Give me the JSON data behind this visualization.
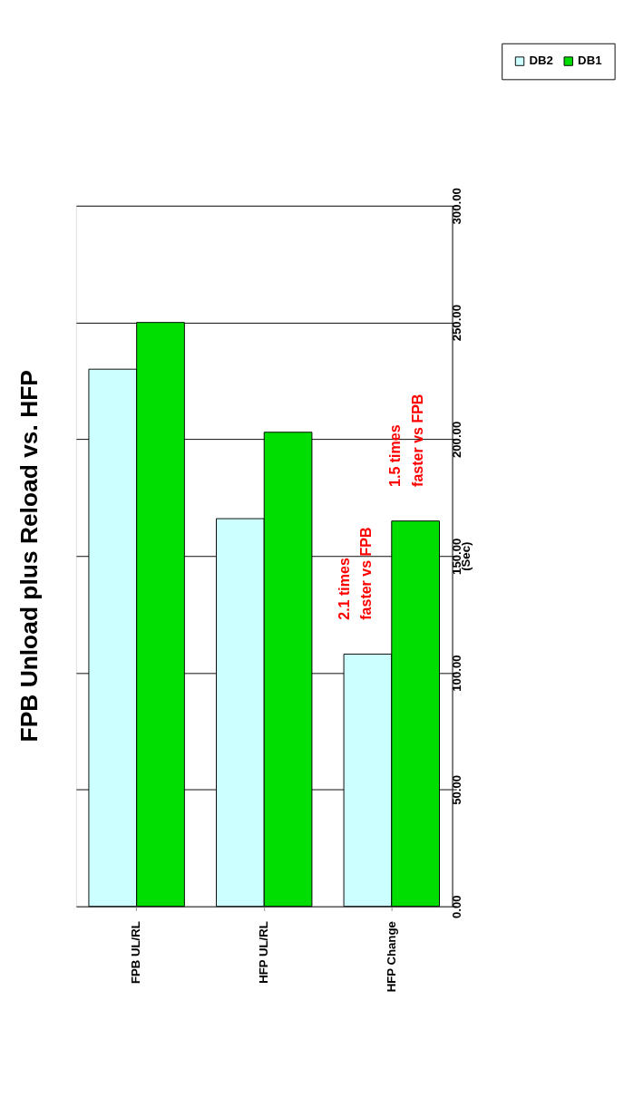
{
  "chart_data": {
    "type": "bar",
    "title": "FPB Unload plus Reload vs. HFP",
    "ylabel": "(Sec)",
    "categories": [
      "FPB UL/RL",
      "HFP UL/RL",
      "HFP Change"
    ],
    "series": [
      {
        "name": "DB2",
        "color": "#ccffff",
        "values": [
          230,
          166,
          108
        ]
      },
      {
        "name": "DB1",
        "color": "#00dd00",
        "values": [
          250,
          203,
          165
        ]
      }
    ],
    "ylim": [
      0,
      300
    ],
    "yticks": [
      {
        "value": 0,
        "label": "0.00"
      },
      {
        "value": 50,
        "label": "50.00"
      },
      {
        "value": 100,
        "label": "100.00"
      },
      {
        "value": 150,
        "label": "150.00"
      },
      {
        "value": 200,
        "label": "200.00"
      },
      {
        "value": 250,
        "label": "250.00"
      },
      {
        "value": 300,
        "label": "300.00"
      }
    ],
    "grid": "y",
    "legend": "top right",
    "annotations": [
      {
        "text": "2.1 times\nfaster vs FPB",
        "x": "HFP Change",
        "y": 108
      },
      {
        "text": "1.5 times\nfaster vs FPB",
        "x": "HFP Change",
        "y": 165
      }
    ]
  }
}
